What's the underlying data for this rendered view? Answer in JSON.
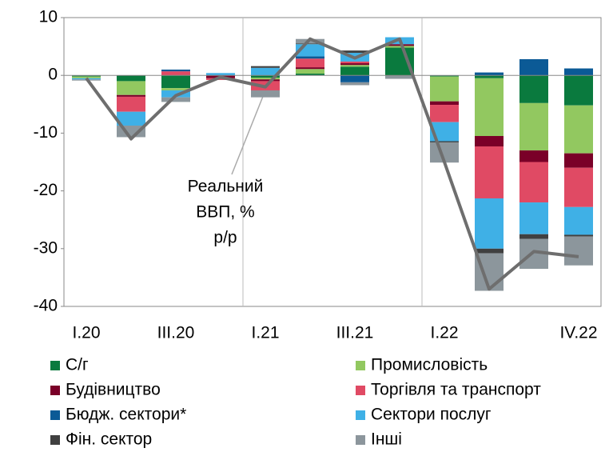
{
  "chart_data": {
    "type": "stacked_bar_line",
    "categories": [
      "I.20",
      null,
      "III.20",
      null,
      "I.21",
      null,
      "III.21",
      null,
      "I.22",
      null,
      null,
      "IV.22"
    ],
    "ylim": [
      -40,
      10
    ],
    "yticks": [
      -40,
      -30,
      -20,
      -10,
      0,
      10
    ],
    "series": [
      {
        "name": "С/г",
        "color": "#0a7a3e",
        "values": [
          -0.2,
          -1,
          -2.2,
          0,
          -0.4,
          0.3,
          1.5,
          4.8,
          -0.2,
          -0.5,
          -4.8,
          -5.2
        ]
      },
      {
        "name": "Промисловість",
        "color": "#92c860",
        "values": [
          -0.3,
          -2.4,
          -0.4,
          0,
          -0.3,
          0.8,
          0.3,
          0.3,
          -4.3,
          -10,
          -8.2,
          -8.3
        ]
      },
      {
        "name": "Будівництво",
        "color": "#7a0028",
        "values": [
          0,
          -0.3,
          0,
          -0.5,
          -0.3,
          0.3,
          0.3,
          0.3,
          -0.6,
          -1.8,
          -2,
          -2.5
        ]
      },
      {
        "name": "Торгівля та транспорт",
        "color": "#e04a64",
        "values": [
          0,
          -2.6,
          0.7,
          -0.3,
          -1.6,
          1.5,
          0.3,
          0,
          -3,
          -9,
          -7,
          -6.8
        ]
      },
      {
        "name": "Бюдж. сектори*",
        "color": "#0b5a96",
        "values": [
          0,
          0,
          0.3,
          0,
          0,
          0.4,
          -1.2,
          0,
          0,
          0.5,
          2.8,
          1.2
        ]
      },
      {
        "name": "Сектори послуг",
        "color": "#3fb0e6",
        "values": [
          -0.2,
          -2.4,
          -1.2,
          0.4,
          1.3,
          2.1,
          1.5,
          1.2,
          -3.3,
          -8.7,
          -5.5,
          -4.8
        ]
      },
      {
        "name": "Фін. сектор",
        "color": "#404040",
        "values": [
          0,
          0,
          0,
          0,
          0.3,
          0.1,
          0.4,
          0,
          -0.2,
          -0.8,
          -0.8,
          -0.3
        ]
      },
      {
        "name": "Інші",
        "color": "#8c969c",
        "values": [
          -0.2,
          -2,
          -0.8,
          0,
          -1.2,
          0.8,
          -0.5,
          -0.6,
          -3.5,
          -6.5,
          -5.2,
          -5
        ]
      }
    ],
    "line": {
      "color": "#6e6e6e",
      "values": [
        -0.5,
        -11,
        -3.5,
        -0.3,
        -2,
        6.3,
        3,
        6.3,
        -15,
        -37,
        -30.5,
        -31.4
      ]
    },
    "annotation": [
      "Реальний",
      "ВВП, %",
      "р/р"
    ]
  }
}
